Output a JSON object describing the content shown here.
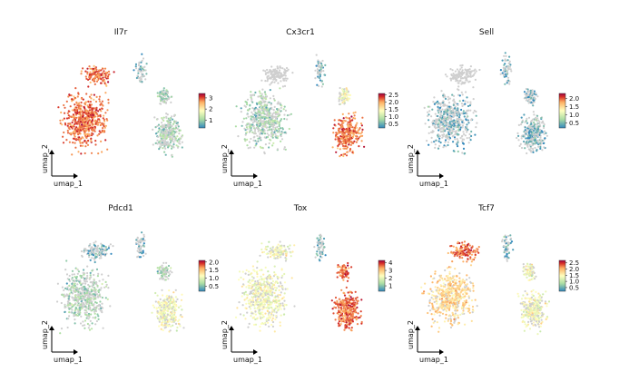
{
  "figure_title": "",
  "chart_data": [
    {
      "type": "scatter",
      "subtype": "umap-feature-plot",
      "title": "Il7r",
      "xlabel": "umap_1",
      "ylabel": "umap_2",
      "colormap": "Spectral_r",
      "colorbar_ticks": [
        1,
        2,
        3
      ],
      "colorbar_range": [
        0.3,
        3.4
      ],
      "expression_by_region": {
        "left_mass": "high",
        "top_branch": "high",
        "right_mass": "low",
        "right_top_lobe": "low"
      }
    },
    {
      "type": "scatter",
      "subtype": "umap-feature-plot",
      "title": "Cx3cr1",
      "xlabel": "umap_1",
      "ylabel": "umap_2",
      "colormap": "Spectral_r",
      "colorbar_ticks": [
        0.5,
        1.0,
        1.5,
        2.0,
        2.5
      ],
      "colorbar_tick_labels": [
        "0.5",
        "1.0",
        "1.5",
        "2.0",
        "2.5"
      ],
      "colorbar_range": [
        0.2,
        2.6
      ],
      "expression_by_region": {
        "left_mass": "low",
        "top_branch": "none",
        "right_mass": "high",
        "right_top_lobe": "medium"
      }
    },
    {
      "type": "scatter",
      "subtype": "umap-feature-plot",
      "title": "Sell",
      "xlabel": "umap_1",
      "ylabel": "umap_2",
      "colormap": "Spectral_r",
      "colorbar_ticks": [
        0.5,
        1.0,
        1.5,
        2.0
      ],
      "colorbar_tick_labels": [
        "0.5",
        "1.0",
        "1.5",
        "2.0"
      ],
      "colorbar_range": [
        0.2,
        2.3
      ],
      "expression_by_region": {
        "left_mass": "sparse",
        "top_branch": "none",
        "right_mass": "sparse",
        "right_top_lobe": "sparse"
      }
    },
    {
      "type": "scatter",
      "subtype": "umap-feature-plot",
      "title": "Pdcd1",
      "xlabel": "umap_1",
      "ylabel": "umap_2",
      "colormap": "Spectral_r",
      "colorbar_ticks": [
        0.5,
        1.0,
        1.5,
        2.0
      ],
      "colorbar_tick_labels": [
        "0.5",
        "1.0",
        "1.5",
        "2.0"
      ],
      "colorbar_range": [
        0.2,
        2.1
      ],
      "expression_by_region": {
        "left_mass": "low",
        "top_branch": "sparse",
        "right_mass": "medium",
        "right_top_lobe": "low"
      }
    },
    {
      "type": "scatter",
      "subtype": "umap-feature-plot",
      "title": "Tox",
      "xlabel": "umap_1",
      "ylabel": "umap_2",
      "colormap": "Spectral_r",
      "colorbar_ticks": [
        1,
        2,
        3,
        4
      ],
      "colorbar_range": [
        0.3,
        4.3
      ],
      "expression_by_region": {
        "left_mass": "medium",
        "top_branch": "medium",
        "right_mass": "high",
        "right_top_lobe": "high"
      }
    },
    {
      "type": "scatter",
      "subtype": "umap-feature-plot",
      "title": "Tcf7",
      "xlabel": "umap_1",
      "ylabel": "umap_2",
      "colormap": "Spectral_r",
      "colorbar_ticks": [
        0.5,
        1.0,
        1.5,
        2.0,
        2.5
      ],
      "colorbar_tick_labels": [
        "0.5",
        "1.0",
        "1.5",
        "2.0",
        "2.5"
      ],
      "colorbar_range": [
        0.2,
        2.7
      ],
      "expression_by_region": {
        "left_mass": "medium-high",
        "top_branch": "high",
        "right_mass": "medium",
        "right_top_lobe": "medium"
      }
    }
  ]
}
